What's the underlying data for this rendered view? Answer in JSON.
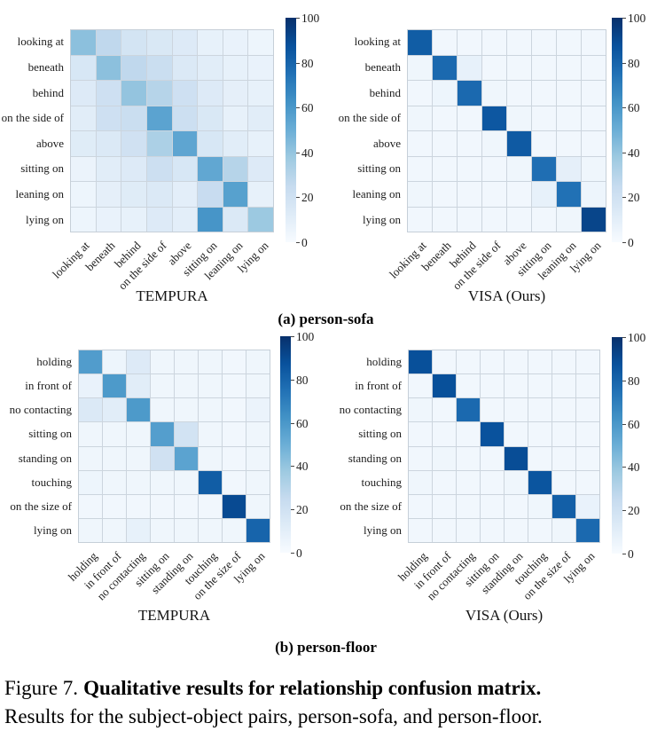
{
  "figure": {
    "subcaption_a": "(a) person-sofa",
    "subcaption_b": "(b) person-floor",
    "caption_prefix": "Figure 7.",
    "caption_bold": "Qualitative results for relationship confusion matrix.",
    "caption_line2": "Results for the subject-object pairs, person-sofa, and person-floor."
  },
  "colors": {
    "colormap": "Blues",
    "cmap_low": "#f7fbff",
    "cmap_high": "#08306b",
    "gridline": "#ccd5de"
  },
  "chart_data": [
    {
      "type": "heatmap",
      "panel": "(a) person-sofa",
      "title": "TEMPURA",
      "labels": [
        "looking at",
        "beneath",
        "behind",
        "on the side of",
        "above",
        "sitting on",
        "leaning on",
        "lying on"
      ],
      "vmin": 0,
      "vmax": 100,
      "colorbar_ticks": [
        0,
        20,
        40,
        60,
        80,
        100
      ],
      "values": [
        [
          42,
          27,
          18,
          15,
          13,
          8,
          7,
          5
        ],
        [
          16,
          42,
          27,
          23,
          14,
          11,
          8,
          7
        ],
        [
          13,
          21,
          40,
          30,
          21,
          13,
          9,
          8
        ],
        [
          11,
          21,
          23,
          55,
          22,
          15,
          8,
          11
        ],
        [
          12,
          14,
          20,
          33,
          54,
          16,
          11,
          8
        ],
        [
          6,
          11,
          13,
          22,
          16,
          53,
          30,
          13
        ],
        [
          5,
          9,
          12,
          14,
          10,
          24,
          56,
          8
        ],
        [
          5,
          7,
          8,
          13,
          10,
          61,
          14,
          38
        ]
      ]
    },
    {
      "type": "heatmap",
      "panel": "(a) person-sofa",
      "title": "VISA (Ours)",
      "labels": [
        "looking at",
        "beneath",
        "behind",
        "on the side of",
        "above",
        "sitting on",
        "leaning on",
        "lying on"
      ],
      "vmin": 0,
      "vmax": 100,
      "colorbar_ticks": [
        0,
        20,
        40,
        60,
        80,
        100
      ],
      "values": [
        [
          83,
          3,
          3,
          3,
          3,
          3,
          3,
          3
        ],
        [
          4,
          78,
          8,
          3,
          3,
          3,
          3,
          3
        ],
        [
          3,
          5,
          78,
          4,
          3,
          3,
          3,
          3
        ],
        [
          4,
          3,
          3,
          85,
          4,
          3,
          3,
          3
        ],
        [
          3,
          3,
          3,
          4,
          84,
          3,
          3,
          3
        ],
        [
          3,
          3,
          3,
          3,
          4,
          76,
          9,
          4
        ],
        [
          4,
          3,
          3,
          3,
          3,
          8,
          75,
          5
        ],
        [
          3,
          3,
          3,
          3,
          3,
          3,
          4,
          92
        ]
      ]
    },
    {
      "type": "heatmap",
      "panel": "(b) person-floor",
      "title": "TEMPURA",
      "labels": [
        "holding",
        "in front of",
        "no contacting",
        "sitting on",
        "standing on",
        "touching",
        "on the size of",
        "lying on"
      ],
      "vmin": 0,
      "vmax": 100,
      "colorbar_ticks": [
        0,
        20,
        40,
        60,
        80,
        100
      ],
      "values": [
        [
          58,
          5,
          13,
          4,
          4,
          4,
          3,
          4
        ],
        [
          7,
          59,
          11,
          4,
          4,
          4,
          3,
          4
        ],
        [
          14,
          11,
          59,
          4,
          4,
          4,
          3,
          6
        ],
        [
          4,
          4,
          4,
          57,
          19,
          4,
          3,
          4
        ],
        [
          4,
          4,
          4,
          20,
          55,
          4,
          3,
          4
        ],
        [
          5,
          4,
          4,
          4,
          4,
          83,
          3,
          4
        ],
        [
          3,
          3,
          3,
          3,
          3,
          3,
          90,
          4
        ],
        [
          4,
          4,
          8,
          4,
          4,
          4,
          4,
          80
        ]
      ]
    },
    {
      "type": "heatmap",
      "panel": "(b) person-floor",
      "title": "VISA (Ours)",
      "labels": [
        "holding",
        "in front of",
        "no contacting",
        "sitting on",
        "standing on",
        "touching",
        "on the size of",
        "lying on"
      ],
      "vmin": 0,
      "vmax": 100,
      "colorbar_ticks": [
        0,
        20,
        40,
        60,
        80,
        100
      ],
      "values": [
        [
          88,
          3,
          3,
          3,
          3,
          3,
          3,
          3
        ],
        [
          3,
          88,
          3,
          3,
          3,
          3,
          3,
          3
        ],
        [
          4,
          3,
          78,
          3,
          3,
          3,
          3,
          3
        ],
        [
          3,
          3,
          3,
          87,
          3,
          3,
          3,
          3
        ],
        [
          3,
          4,
          3,
          3,
          89,
          3,
          3,
          3
        ],
        [
          4,
          3,
          3,
          3,
          4,
          86,
          3,
          3
        ],
        [
          3,
          3,
          3,
          3,
          3,
          4,
          82,
          7
        ],
        [
          3,
          3,
          3,
          3,
          3,
          3,
          4,
          78
        ]
      ]
    }
  ]
}
